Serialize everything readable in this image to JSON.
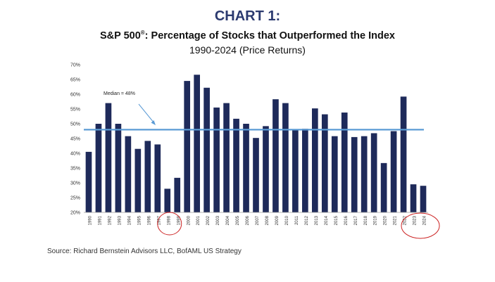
{
  "header": {
    "chart_number": "CHART 1:",
    "subtitle_main": "S&P 500",
    "subtitle_reg": "®",
    "subtitle_rest": ":  Percentage of Stocks that Outperformed the Index",
    "subtitle_period": "1990-2024 (Price Returns)"
  },
  "footer": {
    "source": "Source: Richard Bernstein Advisors LLC, BofAML US Strategy"
  },
  "colors": {
    "bar": "#1e2a5a",
    "median_line": "#5b9bd5",
    "highlight_circle": "#cc2222",
    "arrow": "#5b9bd5"
  },
  "chart_data": {
    "type": "bar",
    "title": "S&P 500®: Percentage of Stocks that Outperformed the Index",
    "subtitle": "1990-2024 (Price Returns)",
    "xlabel": "",
    "ylabel": "",
    "categories": [
      "1990",
      "1991",
      "1992",
      "1993",
      "1994",
      "1995",
      "1996",
      "1997",
      "1998",
      "1999",
      "2000",
      "2001",
      "2002",
      "2003",
      "2004",
      "2005",
      "2006",
      "2007",
      "2008",
      "2009",
      "2010",
      "2011",
      "2012",
      "2013",
      "2014",
      "2015",
      "2016",
      "2017",
      "2018",
      "2019",
      "2020",
      "2021",
      "2022",
      "2023",
      "2024"
    ],
    "values": [
      40.5,
      50,
      57,
      50,
      45.8,
      41.5,
      44.2,
      43,
      28,
      31.7,
      64.5,
      66.6,
      62.2,
      55.5,
      57,
      51.7,
      50,
      45.2,
      49.2,
      58.3,
      57,
      48,
      48.3,
      55.2,
      53.2,
      45.8,
      53.8,
      45.5,
      45.8,
      46.8,
      36.7,
      47.5,
      59.2,
      29.5,
      29
    ],
    "ylim": [
      20,
      70
    ],
    "yticks": [
      20,
      25,
      30,
      35,
      40,
      45,
      50,
      55,
      60,
      65,
      70
    ],
    "ytick_labels": [
      "20%",
      "25%",
      "30%",
      "35%",
      "40%",
      "45%",
      "50%",
      "55%",
      "60%",
      "65%",
      "70%"
    ],
    "grid": false,
    "median": {
      "value": 48,
      "label": "Median = 48%"
    },
    "highlighted_categories": [
      "1998",
      "2023",
      "2024"
    ]
  }
}
